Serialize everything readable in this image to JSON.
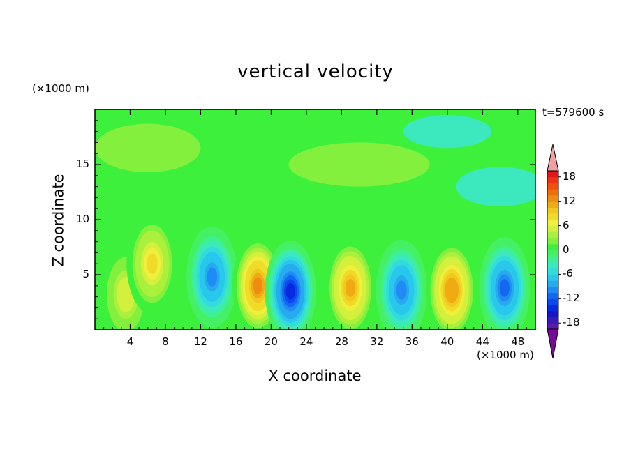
{
  "chart_data": {
    "type": "heatmap",
    "title": "vertical velocity",
    "xlabel": "X coordinate",
    "ylabel": "Z coordinate",
    "x_unit_label": "(×1000 m)",
    "z_unit_label": "(×1000 m)",
    "time_label": "t=579600 s",
    "xlim": [
      0,
      50
    ],
    "ylim": [
      0,
      20
    ],
    "x_ticks": [
      "4",
      "8",
      "12",
      "16",
      "20",
      "24",
      "28",
      "32",
      "36",
      "40",
      "44",
      "48"
    ],
    "x_tick_values": [
      4,
      8,
      12,
      16,
      20,
      24,
      28,
      32,
      36,
      40,
      44,
      48
    ],
    "y_ticks": [
      "5",
      "10",
      "15"
    ],
    "y_tick_values": [
      5,
      10,
      15
    ],
    "colorbar": {
      "levels": [
        -21,
        -19.5,
        -18,
        -16.5,
        -15,
        -13.5,
        -12,
        -10.5,
        -9,
        -7.5,
        -6,
        -4.5,
        -3,
        -1.5,
        0,
        1.5,
        3,
        4.5,
        6,
        7.5,
        9,
        10.5,
        12,
        13.5,
        15,
        16.5,
        18,
        19.5,
        21
      ],
      "tick_labels": [
        "18",
        "12",
        "6",
        "0",
        "-6",
        "-12",
        "-18"
      ],
      "tick_values": [
        18,
        12,
        6,
        0,
        -6,
        -12,
        -18
      ],
      "extend": "both",
      "colors": [
        "#7a0a9a",
        "#5a1ca8",
        "#3818b8",
        "#1414c8",
        "#0a28e0",
        "#0a48f0",
        "#1468f0",
        "#1e8cf4",
        "#28aaf0",
        "#28c8ec",
        "#32dcdc",
        "#3ce8be",
        "#3cf096",
        "#46f064",
        "#3cf03c",
        "#82f03c",
        "#aaf03c",
        "#d2f03c",
        "#f0f03c",
        "#f0dc28",
        "#f0c81e",
        "#f0aa14",
        "#f08c14",
        "#f06e0a",
        "#f0500a",
        "#f03214",
        "#e6141e",
        "#f4a0a0"
      ]
    },
    "cells": [
      {
        "x": 3.5,
        "z": 3.2,
        "w": 7
      },
      {
        "x": 6.5,
        "z": 6.0,
        "w": 9
      },
      {
        "x": 13.3,
        "z": 4.8,
        "w": -11
      },
      {
        "x": 18.5,
        "z": 4.0,
        "w": 14
      },
      {
        "x": 22.2,
        "z": 3.5,
        "w": -15
      },
      {
        "x": 29.0,
        "z": 3.8,
        "w": 12
      },
      {
        "x": 34.8,
        "z": 3.6,
        "w": -11
      },
      {
        "x": 40.5,
        "z": 3.6,
        "w": 13
      },
      {
        "x": 46.5,
        "z": 3.8,
        "w": -12
      }
    ]
  }
}
